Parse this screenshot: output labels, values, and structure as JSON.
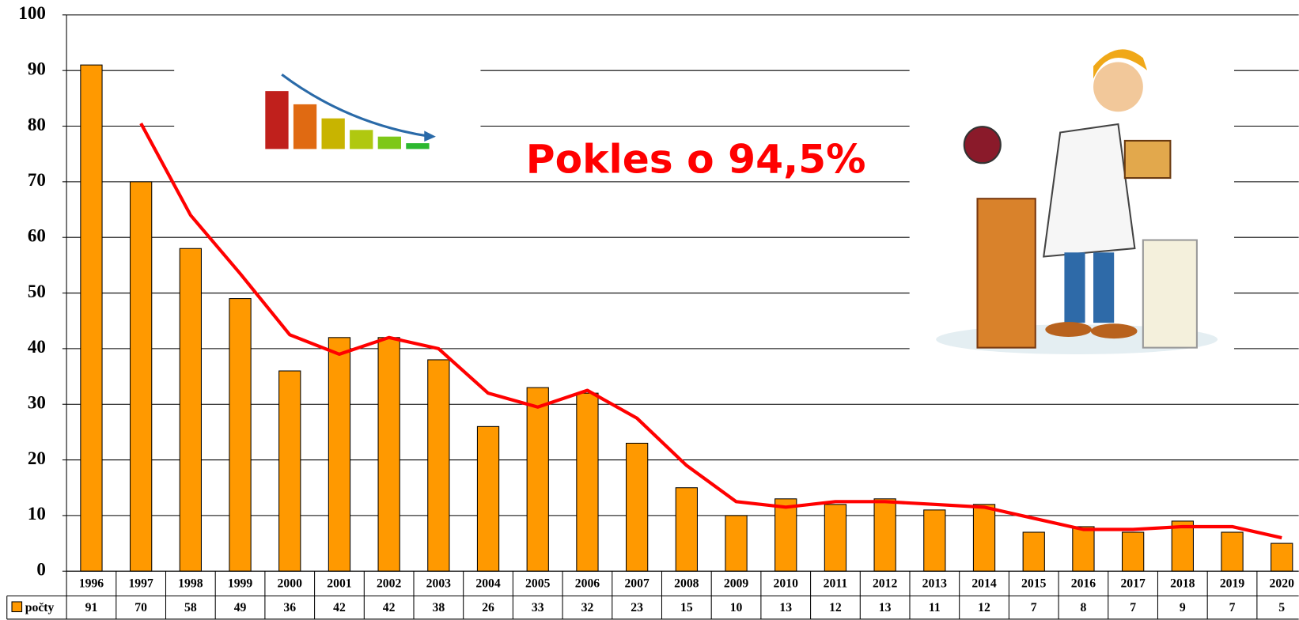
{
  "chart_data": {
    "type": "bar",
    "annotation": "Pokles o 94,5%",
    "categories": [
      "1996",
      "1997",
      "1998",
      "1999",
      "2000",
      "2001",
      "2002",
      "2003",
      "2004",
      "2005",
      "2006",
      "2007",
      "2008",
      "2009",
      "2010",
      "2011",
      "2012",
      "2013",
      "2014",
      "2015",
      "2016",
      "2017",
      "2018",
      "2019",
      "2020"
    ],
    "series": [
      {
        "name": "počty",
        "color": "#ff9900",
        "values": [
          91,
          70,
          58,
          49,
          36,
          42,
          42,
          38,
          26,
          33,
          32,
          23,
          15,
          10,
          13,
          12,
          13,
          11,
          12,
          7,
          8,
          7,
          9,
          7,
          5
        ]
      },
      {
        "color": "#ff0000",
        "values": [
          null,
          80.5,
          64,
          53.5,
          42.5,
          39,
          42,
          40,
          32,
          29.5,
          32.5,
          27.5,
          19,
          12.5,
          11.5,
          12.5,
          12.5,
          12,
          11.5,
          9.5,
          7.5,
          7.5,
          8,
          8,
          6
        ]
      }
    ],
    "ylim": [
      0,
      100
    ],
    "yticks": [
      0,
      10,
      20,
      30,
      40,
      50,
      60,
      70,
      80,
      90,
      100
    ],
    "grid": true
  }
}
